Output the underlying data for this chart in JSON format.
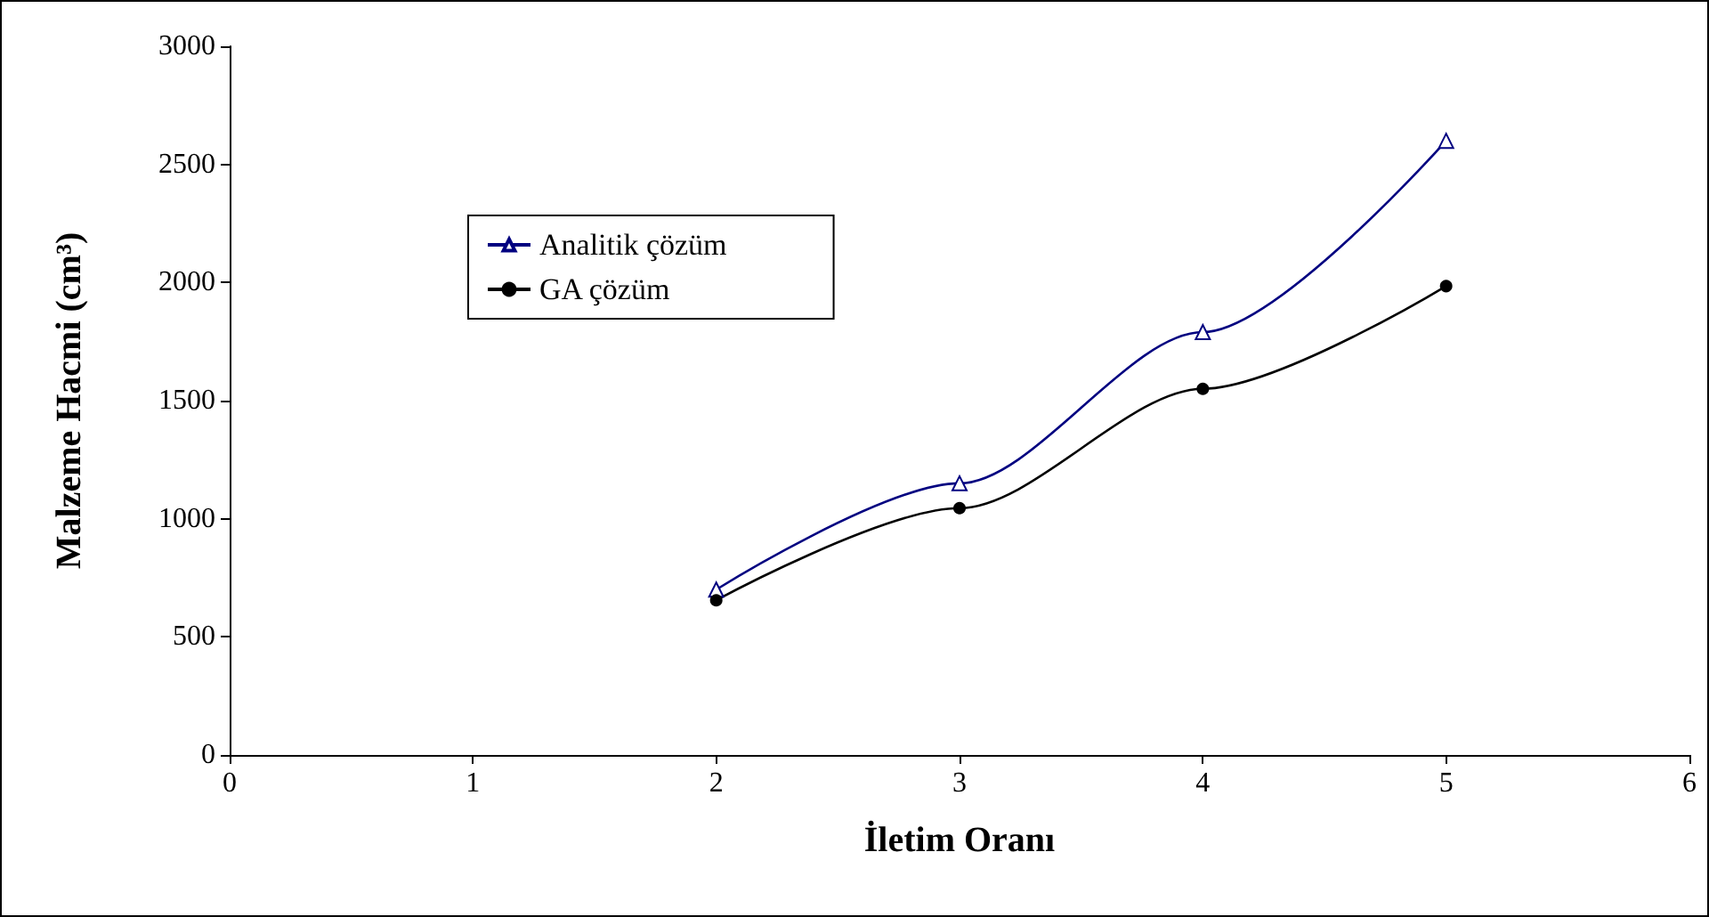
{
  "chart_data": {
    "type": "line",
    "xlabel": "İletim Oranı",
    "ylabel": "Malzeme Hacmi (cm³)",
    "x": [
      2,
      3,
      4,
      5
    ],
    "series": [
      {
        "name": "Analitik çözüm",
        "color": "#000080",
        "marker": "triangle",
        "values": [
          700,
          1150,
          1790,
          2600
        ]
      },
      {
        "name": "GA çözüm",
        "color": "#000000",
        "marker": "circle",
        "values": [
          655,
          1045,
          1550,
          1985
        ]
      }
    ],
    "xlim": [
      0,
      6
    ],
    "xticks": [
      0,
      1,
      2,
      3,
      4,
      5,
      6
    ],
    "ylim": [
      0,
      3000
    ],
    "yticks": [
      0,
      500,
      1000,
      1500,
      2000,
      2500,
      3000
    ],
    "grid": false,
    "legend": "top left",
    "line_style": "solid"
  }
}
